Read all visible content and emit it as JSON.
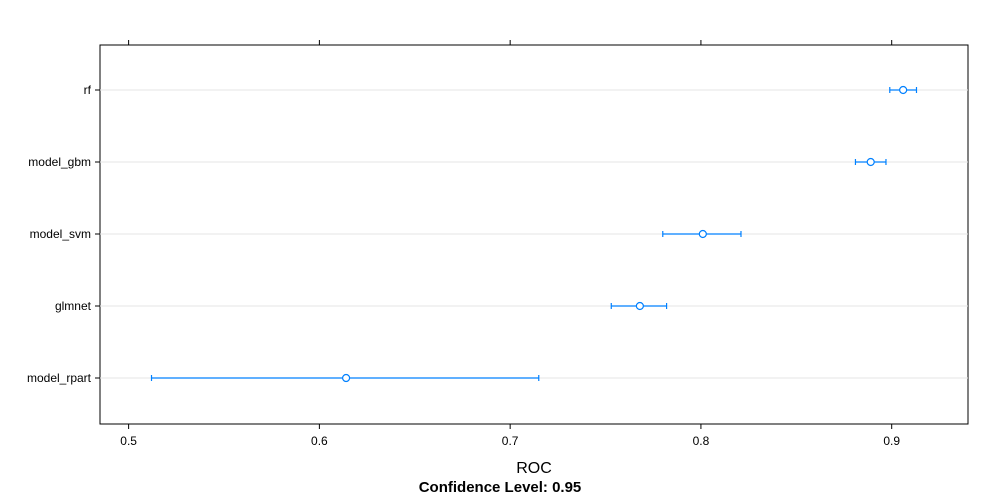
{
  "chart_data": {
    "type": "dotplot",
    "xlabel": "ROC",
    "subtitle": "Confidence Level: 0.95",
    "xlim": [
      0.485,
      0.94
    ],
    "xticks": [
      0.5,
      0.6,
      0.7,
      0.8,
      0.9
    ],
    "xtick_labels": [
      "0.5",
      "0.6",
      "0.7",
      "0.8",
      "0.9"
    ],
    "grid": "horizontal",
    "point_color": "#0080ff",
    "categories": [
      "rf",
      "model_gbm",
      "model_svm",
      "glmnet",
      "model_rpart"
    ],
    "estimates": [
      0.906,
      0.889,
      0.801,
      0.768,
      0.614
    ],
    "lower": [
      0.899,
      0.881,
      0.78,
      0.753,
      0.512
    ],
    "upper": [
      0.913,
      0.897,
      0.821,
      0.782,
      0.715
    ]
  }
}
